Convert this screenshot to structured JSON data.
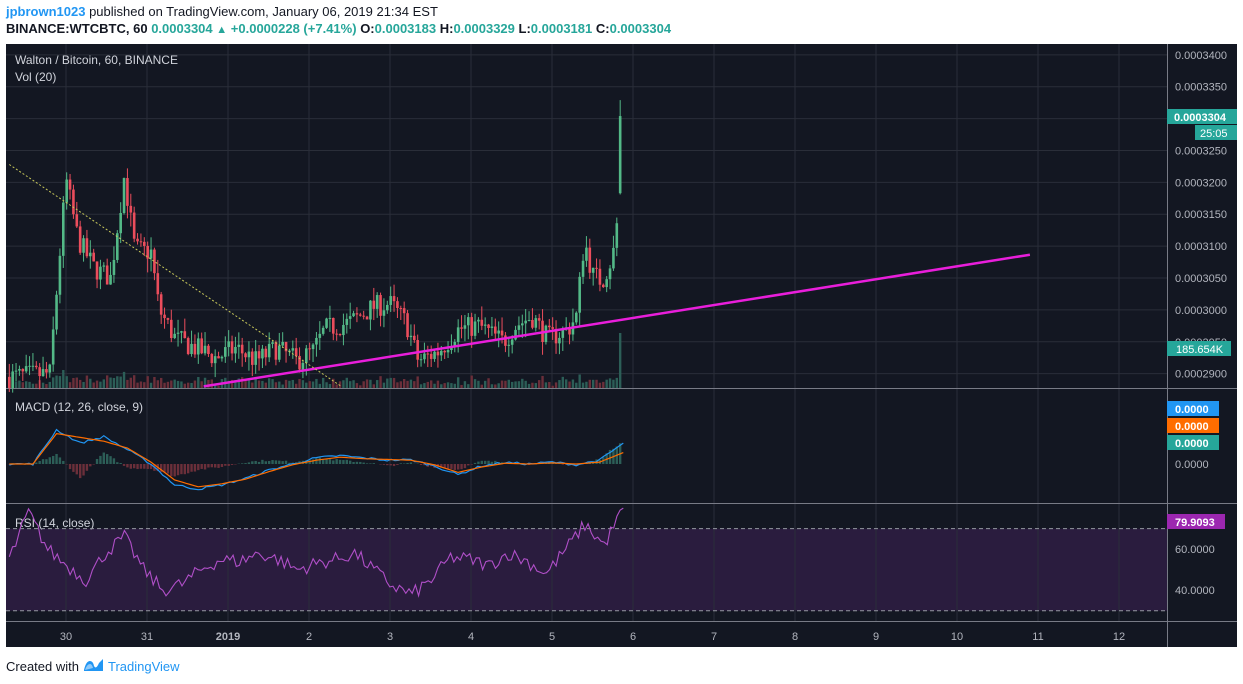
{
  "header": {
    "user": "jpbrown1023",
    "published_text": " published on TradingView.com, January 06, 2019 21:34 EST",
    "symbol_line": "BINANCE:WTCBTC, 60",
    "last": "0.0003304",
    "change": "+0.0000228 (+7.41%)",
    "o_label": "O:",
    "o": "0.0003183",
    "h_label": "H:",
    "h": "0.0003329",
    "l_label": "L:",
    "l": "0.0003181",
    "c_label": "C:",
    "c": "0.0003304"
  },
  "footer": {
    "created_with": "Created with",
    "brand": "TradingView"
  },
  "chart_data": [
    {
      "type": "candlestick",
      "title": "Walton / Bitcoin, 60, BINANCE",
      "subtitle": "Vol (20)",
      "y_ticks": [
        "0.0002900",
        "0.0002950",
        "0.0003000",
        "0.0003050",
        "0.0003100",
        "0.0003150",
        "0.0003200",
        "0.0003250",
        "0.0003300",
        "0.0003350",
        "0.0003400"
      ],
      "ylim": [
        0.00028775,
        0.0003417
      ],
      "x_ticks": [
        "30",
        "31",
        "2019",
        "2",
        "3",
        "4",
        "5",
        "6",
        "7",
        "8",
        "9",
        "10",
        "11",
        "12"
      ],
      "last_price_label": "0.0003304",
      "countdown_label": "25:05",
      "volume_label": "185.654K",
      "bg": "#131722",
      "up_color": "#53b987",
      "down_color": "#eb4d5c",
      "trendlines": [
        {
          "color": "#e91edb",
          "from_day": 1.7,
          "to_day": 11.9,
          "from_price": 0.000288,
          "to_price": 0.00030865
        },
        {
          "color": "#c8c85a",
          "style": "dotted",
          "from_day": -0.7,
          "to_day": 3.4,
          "from_price": 0.0003228,
          "to_price": 0.000288
        }
      ],
      "anchors": [
        [
          -0.7,
          0.0002895
        ],
        [
          -0.2,
          0.00029
        ],
        [
          0.0,
          0.0003205
        ],
        [
          0.15,
          0.000311
        ],
        [
          0.35,
          0.0003065
        ],
        [
          0.55,
          0.000305
        ],
        [
          0.72,
          0.000321
        ],
        [
          0.85,
          0.0003095
        ],
        [
          1.05,
          0.000309
        ],
        [
          1.15,
          0.0003
        ],
        [
          1.35,
          0.0002955
        ],
        [
          1.6,
          0.000294
        ],
        [
          1.85,
          0.0002925
        ],
        [
          2.1,
          0.000294
        ],
        [
          2.35,
          0.000292
        ],
        [
          2.6,
          0.000294
        ],
        [
          2.85,
          0.000292
        ],
        [
          3.05,
          0.0002935
        ],
        [
          3.2,
          0.000297
        ],
        [
          3.5,
          0.000298
        ],
        [
          3.8,
          0.0003005
        ],
        [
          4.0,
          0.000301
        ],
        [
          4.2,
          0.000298
        ],
        [
          4.35,
          0.000292
        ],
        [
          4.6,
          0.0002935
        ],
        [
          4.85,
          0.000297
        ],
        [
          5.1,
          0.0002975
        ],
        [
          5.4,
          0.000295
        ],
        [
          5.55,
          0.0002975
        ],
        [
          5.75,
          0.000299
        ],
        [
          5.95,
          0.0002955
        ],
        [
          6.2,
          0.000297
        ],
        [
          6.3,
          0.000299
        ],
        [
          6.4,
          0.000311
        ],
        [
          6.5,
          0.0003055
        ],
        [
          6.62,
          0.0003045
        ],
        [
          6.72,
          0.0003075
        ],
        [
          6.78,
          0.00031
        ],
        [
          6.85,
          0.000322
        ],
        [
          6.88,
          0.0003304
        ]
      ]
    },
    {
      "type": "line",
      "title": "MACD (12, 26, close, 9)",
      "series": [
        {
          "color": "#2196f3",
          "values": [
            0,
            0,
            0.9,
            0.55,
            0.72,
            0.38,
            0,
            -0.55,
            -0.66,
            -0.55,
            -0.38,
            -0.16,
            0,
            0.16,
            0.22,
            0.16,
            0.1,
            0.11,
            -0.05,
            -0.28,
            -0.05,
            0.04,
            0,
            0.05,
            -0.02,
            0.1,
            0.55
          ]
        },
        {
          "color": "#ff6d00",
          "values": [
            0,
            0,
            0.8,
            0.7,
            0.6,
            0.42,
            0.05,
            -0.42,
            -0.6,
            -0.52,
            -0.4,
            -0.2,
            -0.02,
            0.1,
            0.18,
            0.14,
            0.12,
            0.1,
            -0.02,
            -0.22,
            -0.08,
            0.02,
            0.0,
            0.03,
            0.0,
            0.05,
            0.3
          ]
        }
      ],
      "value_labels": [
        "0.0000",
        "0.0000",
        "0.0000"
      ],
      "y_tick": "0.0000",
      "colors": {
        "macd": "#2196f3",
        "signal": "#ff6d00",
        "hist": "#26a69a"
      }
    },
    {
      "type": "line",
      "title": "RSI (14, close)",
      "y_ticks": [
        "40.0000",
        "60.0000"
      ],
      "levels": [
        30,
        70
      ],
      "ylim": [
        25,
        82
      ],
      "current_label": "79.9093",
      "color": "#b04fc8",
      "band_color": "#2a1c3e",
      "values": [
        55,
        78,
        60,
        52,
        45,
        58,
        66,
        50,
        40,
        43,
        50,
        55,
        54,
        58,
        55,
        50,
        53,
        55,
        58,
        50,
        42,
        38,
        45,
        56,
        55,
        52,
        58,
        54,
        48,
        60,
        72,
        62,
        80
      ]
    }
  ]
}
